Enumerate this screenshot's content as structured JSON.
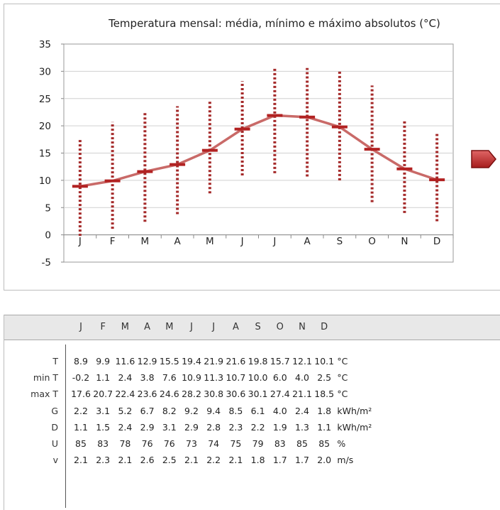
{
  "chart_data": {
    "type": "line",
    "title": "Temperatura mensal: média, mínimo e máximo absolutos (°C)",
    "categories": [
      "J",
      "F",
      "M",
      "A",
      "M",
      "J",
      "J",
      "A",
      "S",
      "O",
      "N",
      "D"
    ],
    "series": [
      {
        "values": [
          8.9,
          9.9,
          11.6,
          12.9,
          15.5,
          19.4,
          21.9,
          21.6,
          19.8,
          15.7,
          12.1,
          10.1
        ]
      },
      {
        "values": [
          -0.2,
          1.1,
          2.4,
          3.8,
          7.6,
          10.9,
          11.3,
          10.7,
          10.0,
          6.0,
          4.0,
          2.5
        ]
      },
      {
        "values": [
          17.6,
          20.7,
          22.4,
          23.6,
          24.6,
          28.2,
          30.8,
          30.6,
          30.1,
          27.4,
          21.1,
          18.5
        ]
      }
    ],
    "ylim": [
      -5,
      35
    ],
    "yticks": [
      -5,
      0,
      5,
      10,
      15,
      20,
      25,
      30,
      35
    ],
    "grid": true,
    "colors": {
      "mean": "#c0504d",
      "range": "#a52a2a",
      "marker": "#b22222"
    }
  },
  "table": {
    "months": [
      "J",
      "F",
      "M",
      "A",
      "M",
      "J",
      "J",
      "A",
      "S",
      "O",
      "N",
      "D"
    ],
    "rows": [
      {
        "label": "T",
        "values": [
          "8.9",
          "9.9",
          "11.6",
          "12.9",
          "15.5",
          "19.4",
          "21.9",
          "21.6",
          "19.8",
          "15.7",
          "12.1",
          "10.1"
        ],
        "unit": "°C"
      },
      {
        "label": "min T",
        "values": [
          "-0.2",
          "1.1",
          "2.4",
          "3.8",
          "7.6",
          "10.9",
          "11.3",
          "10.7",
          "10.0",
          "6.0",
          "4.0",
          "2.5"
        ],
        "unit": "°C"
      },
      {
        "label": "max T",
        "values": [
          "17.6",
          "20.7",
          "22.4",
          "23.6",
          "24.6",
          "28.2",
          "30.8",
          "30.6",
          "30.1",
          "27.4",
          "21.1",
          "18.5"
        ],
        "unit": "°C"
      },
      {
        "label": "G",
        "values": [
          "2.2",
          "3.1",
          "5.2",
          "6.7",
          "8.2",
          "9.2",
          "9.4",
          "8.5",
          "6.1",
          "4.0",
          "2.4",
          "1.8"
        ],
        "unit": "kWh/m²"
      },
      {
        "label": "D",
        "values": [
          "1.1",
          "1.5",
          "2.4",
          "2.9",
          "3.1",
          "2.9",
          "2.8",
          "2.3",
          "2.2",
          "1.9",
          "1.3",
          "1.1"
        ],
        "unit": "kWh/m²"
      },
      {
        "label": "U",
        "values": [
          "85",
          "83",
          "78",
          "76",
          "76",
          "73",
          "74",
          "75",
          "79",
          "83",
          "85",
          "85"
        ],
        "unit": "%"
      },
      {
        "label": "v",
        "values": [
          "2.1",
          "2.3",
          "2.1",
          "2.6",
          "2.5",
          "2.1",
          "2.2",
          "2.1",
          "1.8",
          "1.7",
          "1.7",
          "2.0"
        ],
        "unit": "m/s"
      }
    ]
  },
  "arrow": {
    "icon": "arrow-right-icon",
    "color": "#c0392b"
  }
}
